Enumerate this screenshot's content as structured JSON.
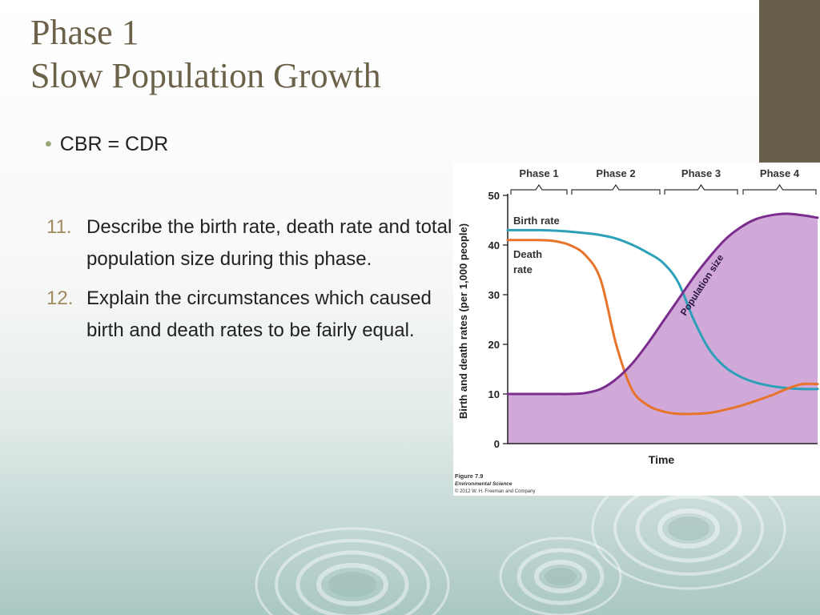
{
  "slide": {
    "title_line1": "Phase 1",
    "title_line2": "Slow Population Growth",
    "bullet": "CBR = CDR",
    "list": [
      {
        "num": "11.",
        "text": "Describe the birth rate, death rate and total population size during this phase."
      },
      {
        "num": "12.",
        "text": "Explain the circumstances which caused birth and death rates to be fairly equal."
      }
    ],
    "colors": {
      "title": "#6b6249",
      "accent_block": "#675f49",
      "list_number": "#a08a5e"
    }
  },
  "chart_data": {
    "type": "line",
    "title": "",
    "xlabel": "Time",
    "ylabel": "Birth and death rates (per 1,000 people)",
    "ylim": [
      0,
      50
    ],
    "yticks": [
      0,
      10,
      20,
      30,
      40,
      50
    ],
    "phases": [
      "Phase 1",
      "Phase 2",
      "Phase 3",
      "Phase 4"
    ],
    "x": [
      0,
      5,
      10,
      15,
      20,
      25,
      30,
      35,
      40,
      45,
      50,
      55,
      60,
      65,
      70,
      75,
      80,
      85,
      90,
      95,
      100
    ],
    "series": [
      {
        "name": "Birth rate",
        "color": "#2ba0b8",
        "values": [
          43,
          43,
          43,
          42.9,
          42.7,
          42.4,
          42,
          41.3,
          40.1,
          38.5,
          36.5,
          32.5,
          25,
          19,
          15.5,
          13.5,
          12.3,
          11.6,
          11.2,
          11,
          11
        ]
      },
      {
        "name": "Death rate",
        "color": "#e8732a",
        "values": [
          41,
          41,
          41,
          40.8,
          40,
          38,
          33,
          20,
          11,
          7.8,
          6.5,
          6,
          6,
          6.2,
          6.8,
          7.6,
          8.6,
          9.7,
          11,
          12,
          12
        ]
      },
      {
        "name": "Population size",
        "color": "#7b2d8e",
        "fill": "#d0a9d8",
        "values": [
          10,
          10,
          10,
          10,
          10,
          10.2,
          11,
          13,
          16,
          20,
          24.5,
          29,
          33.5,
          37.5,
          41,
          43.5,
          45.2,
          46,
          46.3,
          46,
          45.5
        ]
      }
    ],
    "grid": false,
    "caption": {
      "figure": "Figure 7.9",
      "book": "Environmental Science",
      "copyright": "© 2012 W. H. Freeman and Company"
    }
  }
}
